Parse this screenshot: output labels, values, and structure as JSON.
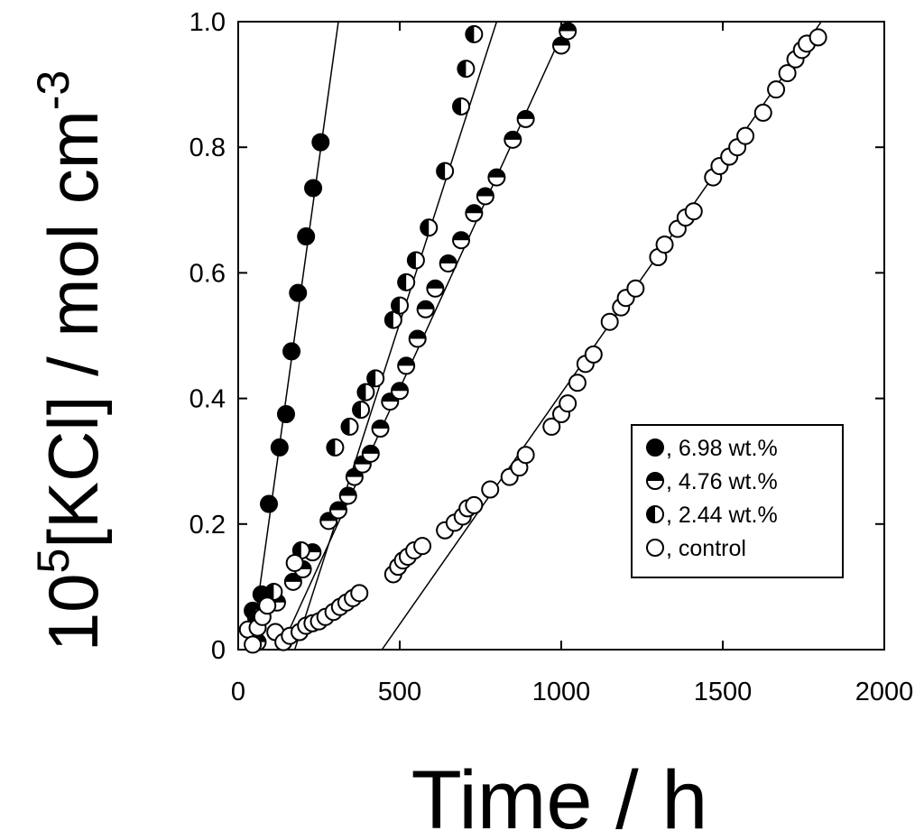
{
  "chart_data": {
    "type": "scatter",
    "title": "",
    "xlabel": "Time / h",
    "ylabel_parts": {
      "base": "10",
      "exp": "5",
      "mid": "[KCl] / mol cm",
      "exp2": "-3"
    },
    "xlim": [
      0,
      2000
    ],
    "ylim": [
      0,
      1.0
    ],
    "xticks": [
      0,
      500,
      1000,
      1500,
      2000
    ],
    "xtick_labels": [
      "0",
      "500",
      "1000",
      "1500",
      "2000"
    ],
    "yticks": [
      0,
      0.2,
      0.4,
      0.6,
      0.8,
      1.0
    ],
    "ytick_labels": [
      "0",
      "0.2",
      "0.4",
      "0.6",
      "0.8",
      "1.0"
    ],
    "grid": false,
    "legend_position": "lower-right",
    "series": [
      {
        "name": ", 6.98 wt.%",
        "marker": "filled",
        "points": [
          [
            45,
            0.062
          ],
          [
            72,
            0.088
          ],
          [
            95,
            0.232
          ],
          [
            128,
            0.322
          ],
          [
            148,
            0.375
          ],
          [
            165,
            0.475
          ],
          [
            185,
            0.568
          ],
          [
            210,
            0.658
          ],
          [
            232,
            0.735
          ],
          [
            255,
            0.808
          ]
        ],
        "fit": [
          [
            40,
            0.0
          ],
          [
            310,
            1.0
          ]
        ]
      },
      {
        "name": ", 4.76 wt.%",
        "marker": "half-top",
        "points": [
          [
            60,
            0.012
          ],
          [
            120,
            0.075
          ],
          [
            170,
            0.108
          ],
          [
            200,
            0.128
          ],
          [
            230,
            0.155
          ],
          [
            280,
            0.205
          ],
          [
            310,
            0.222
          ],
          [
            340,
            0.245
          ],
          [
            360,
            0.275
          ],
          [
            385,
            0.295
          ],
          [
            410,
            0.312
          ],
          [
            440,
            0.352
          ],
          [
            470,
            0.395
          ],
          [
            500,
            0.412
          ],
          [
            520,
            0.452
          ],
          [
            555,
            0.495
          ],
          [
            580,
            0.542
          ],
          [
            610,
            0.575
          ],
          [
            650,
            0.615
          ],
          [
            690,
            0.652
          ],
          [
            730,
            0.695
          ],
          [
            765,
            0.722
          ],
          [
            800,
            0.752
          ],
          [
            850,
            0.812
          ],
          [
            890,
            0.845
          ],
          [
            1000,
            0.962
          ],
          [
            1020,
            0.985
          ]
        ],
        "fit": [
          [
            130,
            0.0
          ],
          [
            1020,
            1.0
          ]
        ]
      },
      {
        "name": ", 2.44 wt.%",
        "marker": "half-left",
        "points": [
          [
            55,
            0.052
          ],
          [
            110,
            0.092
          ],
          [
            195,
            0.158
          ],
          [
            300,
            0.322
          ],
          [
            345,
            0.355
          ],
          [
            380,
            0.382
          ],
          [
            395,
            0.41
          ],
          [
            425,
            0.432
          ],
          [
            480,
            0.525
          ],
          [
            500,
            0.548
          ],
          [
            520,
            0.585
          ],
          [
            550,
            0.62
          ],
          [
            590,
            0.672
          ],
          [
            640,
            0.762
          ],
          [
            690,
            0.865
          ],
          [
            705,
            0.925
          ],
          [
            730,
            0.98
          ]
        ],
        "fit": [
          [
            175,
            0.0
          ],
          [
            800,
            1.0
          ]
        ]
      },
      {
        "name": ", control",
        "marker": "open",
        "points": [
          [
            30,
            0.032
          ],
          [
            45,
            0.008
          ],
          [
            60,
            0.035
          ],
          [
            75,
            0.052
          ],
          [
            90,
            0.07
          ],
          [
            115,
            0.028
          ],
          [
            140,
            0.012
          ],
          [
            160,
            0.022
          ],
          [
            175,
            0.138
          ],
          [
            190,
            0.028
          ],
          [
            210,
            0.038
          ],
          [
            230,
            0.042
          ],
          [
            250,
            0.045
          ],
          [
            270,
            0.052
          ],
          [
            295,
            0.06
          ],
          [
            315,
            0.068
          ],
          [
            335,
            0.075
          ],
          [
            355,
            0.082
          ],
          [
            375,
            0.09
          ],
          [
            480,
            0.12
          ],
          [
            495,
            0.132
          ],
          [
            510,
            0.142
          ],
          [
            525,
            0.148
          ],
          [
            545,
            0.158
          ],
          [
            570,
            0.165
          ],
          [
            640,
            0.19
          ],
          [
            670,
            0.202
          ],
          [
            695,
            0.212
          ],
          [
            710,
            0.225
          ],
          [
            730,
            0.23
          ],
          [
            780,
            0.255
          ],
          [
            840,
            0.275
          ],
          [
            870,
            0.29
          ],
          [
            890,
            0.31
          ],
          [
            970,
            0.355
          ],
          [
            1000,
            0.375
          ],
          [
            1020,
            0.392
          ],
          [
            1050,
            0.425
          ],
          [
            1075,
            0.455
          ],
          [
            1100,
            0.47
          ],
          [
            1150,
            0.522
          ],
          [
            1185,
            0.545
          ],
          [
            1200,
            0.56
          ],
          [
            1230,
            0.575
          ],
          [
            1300,
            0.625
          ],
          [
            1320,
            0.645
          ],
          [
            1360,
            0.67
          ],
          [
            1385,
            0.688
          ],
          [
            1410,
            0.698
          ],
          [
            1470,
            0.752
          ],
          [
            1490,
            0.77
          ],
          [
            1520,
            0.785
          ],
          [
            1545,
            0.8
          ],
          [
            1570,
            0.818
          ],
          [
            1625,
            0.855
          ],
          [
            1665,
            0.892
          ],
          [
            1700,
            0.918
          ],
          [
            1725,
            0.94
          ],
          [
            1745,
            0.955
          ],
          [
            1760,
            0.965
          ],
          [
            1795,
            0.975
          ]
        ],
        "fit": [
          [
            445,
            0.0
          ],
          [
            1805,
            1.0
          ]
        ]
      }
    ]
  }
}
